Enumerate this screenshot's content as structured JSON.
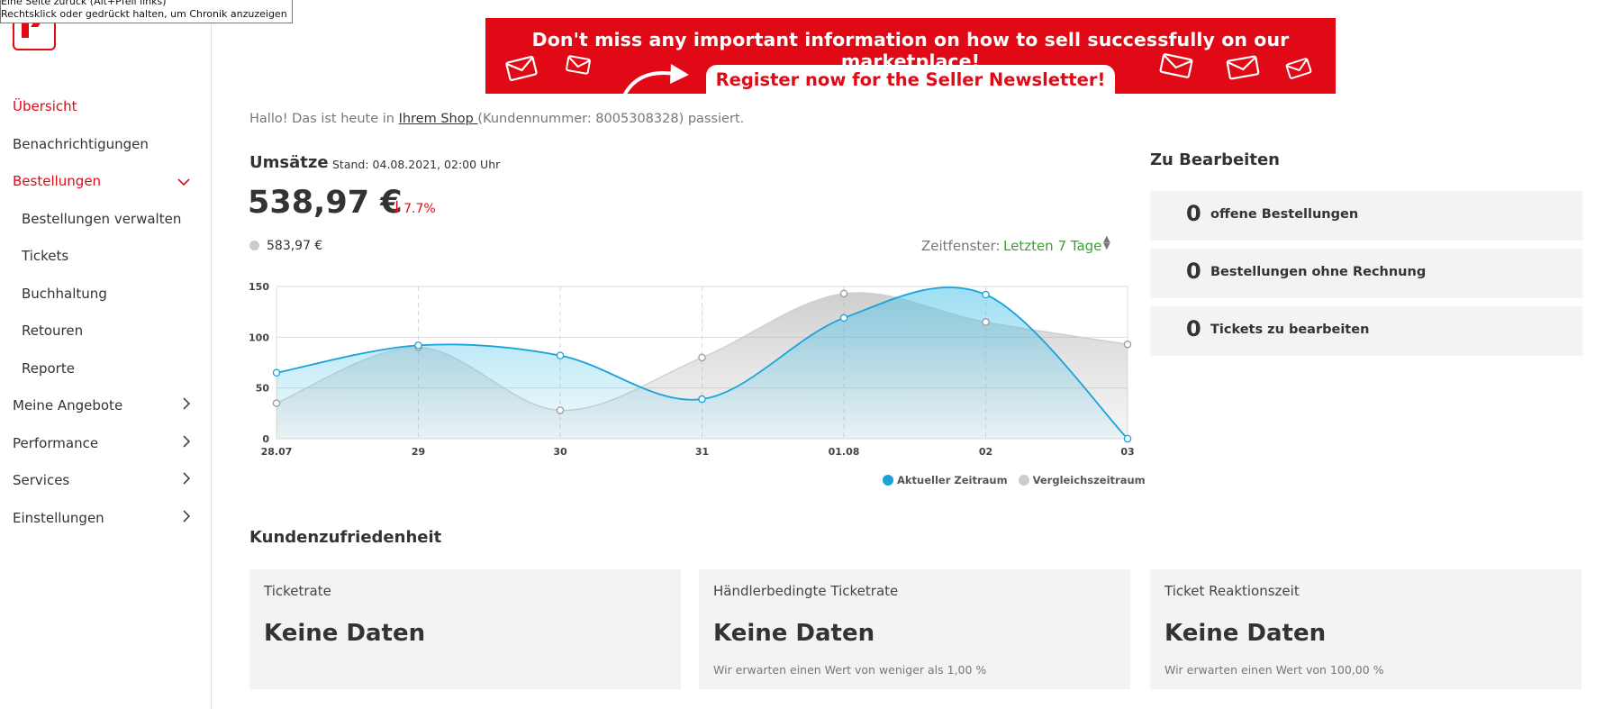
{
  "tooltip": {
    "line1": "Eine Seite zurück (Alt+Pfeil links)",
    "line2": "Rechtsklick oder gedrückt halten, um Chronik anzuzeigen"
  },
  "colors": {
    "brand_red": "#e10915",
    "accent_blue": "#1aa3d8",
    "compare_gray": "#cccccc",
    "green": "#3aa232"
  },
  "sidebar": {
    "items": [
      {
        "label": "Übersicht",
        "active": true,
        "sub": false,
        "chevron": ""
      },
      {
        "label": "Benachrichtigungen",
        "active": false,
        "sub": false,
        "chevron": ""
      },
      {
        "label": "Bestellungen",
        "active": true,
        "sub": false,
        "chevron": "chevron-down-icon"
      },
      {
        "label": "Bestellungen verwalten",
        "active": false,
        "sub": true,
        "chevron": ""
      },
      {
        "label": "Tickets",
        "active": false,
        "sub": true,
        "chevron": ""
      },
      {
        "label": "Buchhaltung",
        "active": false,
        "sub": true,
        "chevron": ""
      },
      {
        "label": "Retouren",
        "active": false,
        "sub": true,
        "chevron": ""
      },
      {
        "label": "Reporte",
        "active": false,
        "sub": true,
        "chevron": ""
      },
      {
        "label": "Meine Angebote",
        "active": false,
        "sub": false,
        "chevron": "chevron-right-icon"
      },
      {
        "label": "Performance",
        "active": false,
        "sub": false,
        "chevron": "chevron-right-icon"
      },
      {
        "label": "Services",
        "active": false,
        "sub": false,
        "chevron": "chevron-right-icon"
      },
      {
        "label": "Einstellungen",
        "active": false,
        "sub": false,
        "chevron": "chevron-right-icon"
      }
    ]
  },
  "banner": {
    "line1": "Don't miss any important information on how to sell successfully on our marketplace!",
    "line2": "Register now for the Seller Newsletter!"
  },
  "greeting": {
    "prefix": "Hallo! Das ist heute in ",
    "shop_link": "Ihrem Shop ",
    "suffix": "(Kundennummer: 8005308328) passiert."
  },
  "umsaetze": {
    "title": "Umsätze",
    "stand": "Stand: 04.08.2021, 02:00 Uhr",
    "amount": "538,97 €",
    "delta": "7.7%",
    "compare_amount": "583,97 €",
    "zeitfenster_label": "Zeitfenster:",
    "zeitfenster_value": "Letzten 7 Tage"
  },
  "chart_data": {
    "type": "area",
    "x": [
      "28.07",
      "29",
      "30",
      "31",
      "01.08",
      "02",
      "03"
    ],
    "y_ticks": [
      0,
      50,
      100,
      150
    ],
    "ylim": [
      0,
      150
    ],
    "grid": true,
    "legend_position": "bottom-right",
    "series": [
      {
        "name": "Aktueller Zeitraum",
        "values": [
          65,
          92,
          82,
          39,
          119,
          142,
          0
        ],
        "color": "#1aa3d8"
      },
      {
        "name": "Vergleichszeitraum",
        "values": [
          35,
          90,
          28,
          80,
          143,
          115,
          93
        ],
        "color": "#c8c8c8"
      }
    ]
  },
  "zu_bearbeiten": {
    "title": "Zu Bearbeiten",
    "cards": [
      {
        "count": "0",
        "label": "offene Bestellungen"
      },
      {
        "count": "0",
        "label": "Bestellungen ohne Rechnung"
      },
      {
        "count": "0",
        "label": "Tickets zu bearbeiten"
      }
    ]
  },
  "kundenzufriedenheit": {
    "title": "Kundenzufriedenheit",
    "cards": [
      {
        "title": "Ticketrate",
        "value": "Keine Daten",
        "sub": ""
      },
      {
        "title": "Händlerbedingte Ticketrate",
        "value": "Keine Daten",
        "sub": "Wir erwarten einen Wert von weniger als 1,00 %"
      },
      {
        "title": "Ticket Reaktionszeit",
        "value": "Keine Daten",
        "sub": "Wir erwarten einen Wert von 100,00 %"
      }
    ]
  }
}
